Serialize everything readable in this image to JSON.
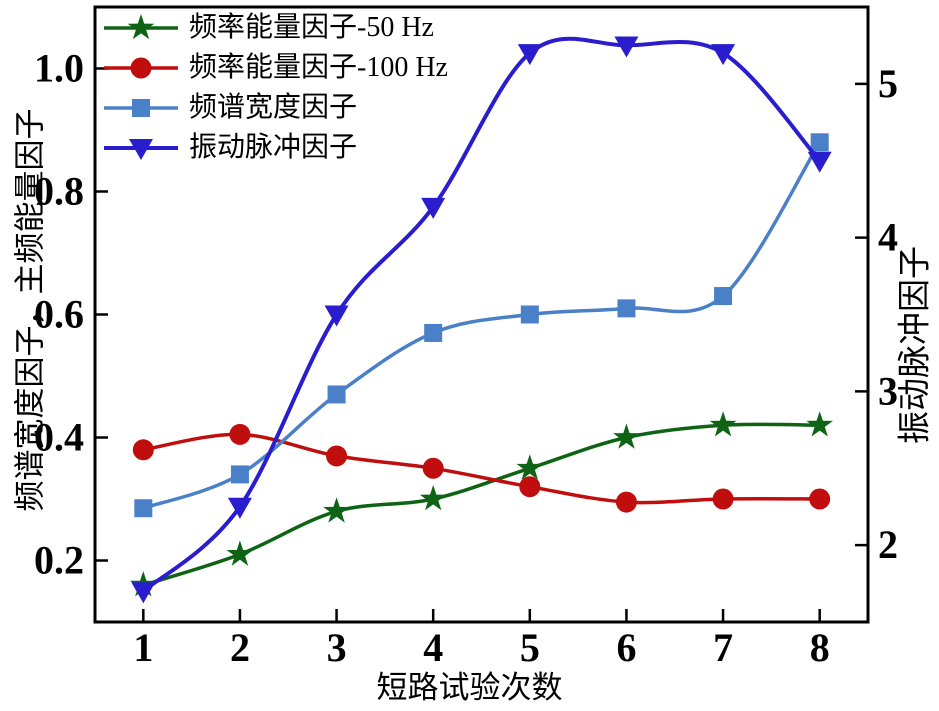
{
  "figure": {
    "background": "#ffffff",
    "frame_color": "#000000",
    "text_color": "#000000"
  },
  "chart_data": {
    "type": "line",
    "x": [
      1,
      2,
      3,
      4,
      5,
      6,
      7,
      8
    ],
    "xlabel": "短路试验次数",
    "ylabel_left": "频谱宽度因子，主频能量因子",
    "ylabel_right": "振动脉冲因子",
    "xlim": [
      0.5,
      8.5
    ],
    "ylim_left": [
      0.1,
      1.1
    ],
    "ylim_right": [
      1.5,
      5.5
    ],
    "xticks": [
      1,
      2,
      3,
      4,
      5,
      6,
      7,
      8
    ],
    "yticks_left": [
      0.2,
      0.4,
      0.6,
      0.8,
      1.0
    ],
    "yticks_right": [
      2,
      3,
      4,
      5
    ],
    "grid": false,
    "legend_position": "top-left",
    "series": [
      {
        "name": "频率能量因子-50 Hz",
        "axis": "left",
        "marker": "star",
        "color": "#0e6414",
        "values": [
          0.16,
          0.21,
          0.28,
          0.3,
          0.35,
          0.4,
          0.42,
          0.42
        ]
      },
      {
        "name": "频率能量因子-100 Hz",
        "axis": "left",
        "marker": "circle",
        "color": "#c00d0d",
        "values": [
          0.38,
          0.405,
          0.37,
          0.35,
          0.32,
          0.295,
          0.3,
          0.3
        ]
      },
      {
        "name": "频谱宽度因子",
        "axis": "left",
        "marker": "square",
        "color": "#4a80c8",
        "values": [
          0.285,
          0.34,
          0.47,
          0.57,
          0.6,
          0.61,
          0.63,
          0.88
        ]
      },
      {
        "name": "振动脉冲因子",
        "axis": "right",
        "marker": "triangle-down",
        "color": "#2a1dcd",
        "values": [
          1.7,
          2.25,
          3.5,
          4.2,
          5.2,
          5.25,
          5.2,
          4.5
        ]
      }
    ]
  }
}
